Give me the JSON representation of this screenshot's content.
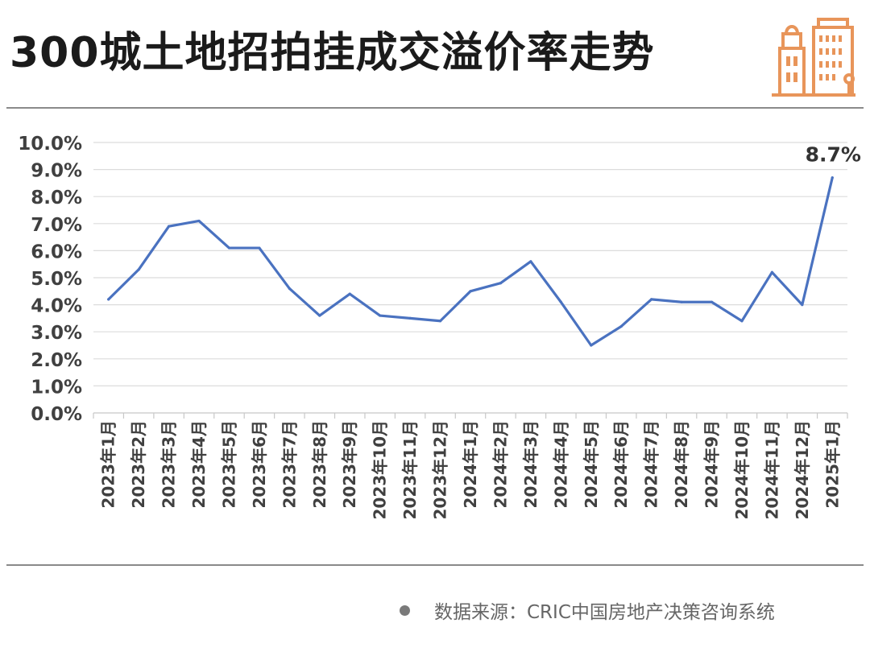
{
  "header": {
    "title": "300城土地招拍挂成交溢价率走势"
  },
  "footer": {
    "source": "数据来源：CRIC中国房地产决策咨询系统"
  },
  "colors": {
    "line": "#4A72C0",
    "grid": "#dcdcdc",
    "logo": "#E8955A",
    "text": "#404040"
  },
  "chart_data": {
    "type": "line",
    "title": "300城土地招拍挂成交溢价率走势",
    "xlabel": "",
    "ylabel": "",
    "ylim": [
      0,
      10
    ],
    "yticks": [
      "0.0%",
      "1.0%",
      "2.0%",
      "3.0%",
      "4.0%",
      "5.0%",
      "6.0%",
      "7.0%",
      "8.0%",
      "9.0%",
      "10.0%"
    ],
    "grid": true,
    "legend": "none",
    "categories": [
      "2023年1月",
      "2023年2月",
      "2023年3月",
      "2023年4月",
      "2023年5月",
      "2023年6月",
      "2023年7月",
      "2023年8月",
      "2023年9月",
      "2023年10月",
      "2023年11月",
      "2023年12月",
      "2024年1月",
      "2024年2月",
      "2024年3月",
      "2024年4月",
      "2024年5月",
      "2024年6月",
      "2024年7月",
      "2024年8月",
      "2024年9月",
      "2024年10月",
      "2024年11月",
      "2024年12月",
      "2025年1月"
    ],
    "series": [
      {
        "values": [
          4.2,
          5.3,
          6.9,
          7.1,
          6.1,
          6.1,
          4.6,
          3.6,
          4.4,
          3.6,
          3.5,
          3.4,
          4.5,
          4.8,
          5.6,
          4.1,
          2.5,
          3.2,
          4.2,
          4.1,
          4.1,
          3.4,
          5.2,
          4.0,
          8.7
        ]
      }
    ],
    "annotations": [
      {
        "category": "2025年1月",
        "text": "8.7%"
      }
    ]
  }
}
